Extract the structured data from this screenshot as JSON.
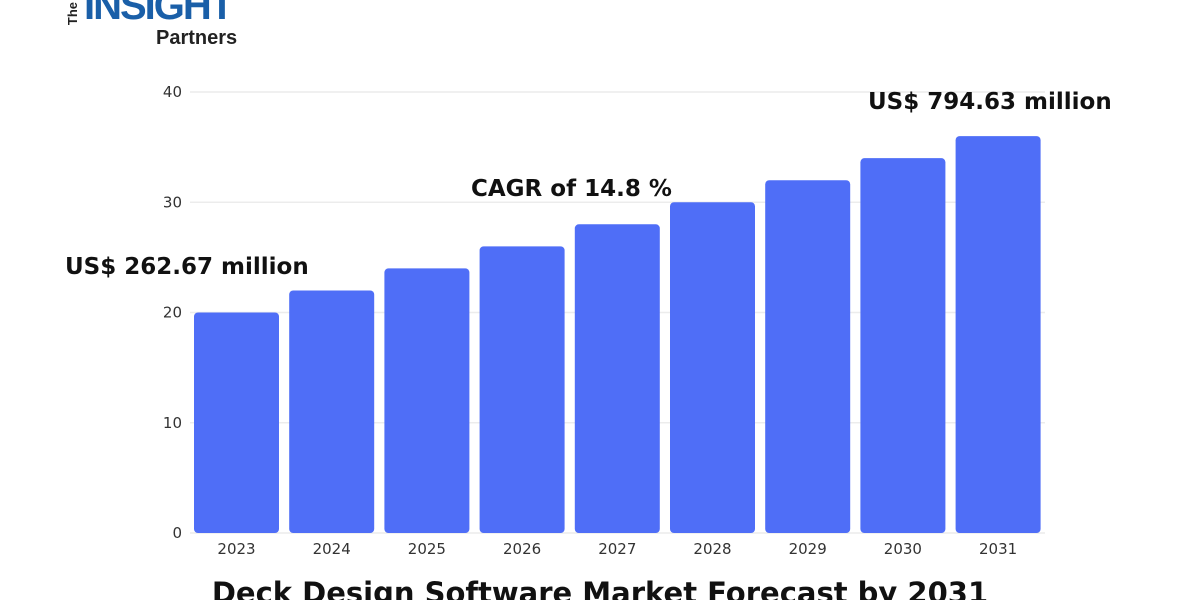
{
  "logo": {
    "the": "The",
    "insight": "INSIGHT",
    "partners": "Partners"
  },
  "chart_data": {
    "type": "bar",
    "title": "Deck Design Software Market Forecast by 2031",
    "categories": [
      "2023",
      "2024",
      "2025",
      "2026",
      "2027",
      "2028",
      "2029",
      "2030",
      "2031"
    ],
    "values": [
      20,
      22,
      24,
      26,
      28,
      30,
      32,
      34,
      36
    ],
    "ylim": [
      0,
      40
    ],
    "yticks": [
      0,
      10,
      20,
      30,
      40
    ],
    "grid": true,
    "bar_color": "#4f6ef7",
    "annotations": {
      "start": "US$ 262.67 million",
      "cagr": "CAGR of 14.8 %",
      "end": "US$ 794.63 million"
    }
  }
}
